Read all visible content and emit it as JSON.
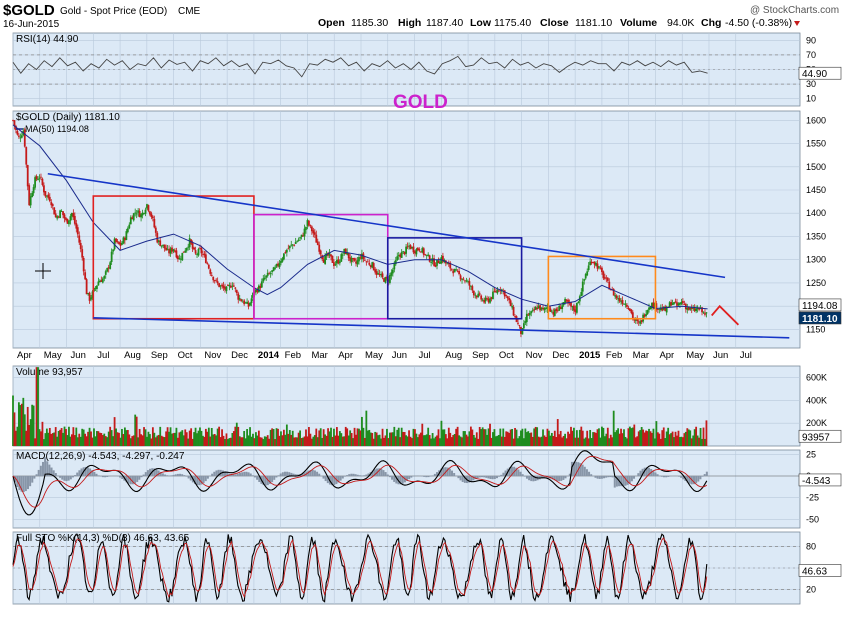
{
  "header": {
    "symbol": "$GOLD",
    "description": "Gold - Spot Price (EOD)",
    "exchange": "CME",
    "date": "16-Jun-2015",
    "open_label": "Open",
    "open": "1185.30",
    "high_label": "High",
    "high": "1187.40",
    "low_label": "Low",
    "low": "1175.40",
    "close_label": "Close",
    "close": "1181.10",
    "volume_label": "Volume",
    "volume": "94.0K",
    "chg_label": "Chg",
    "chg": "-4.50 (-0.38%)",
    "watermark": "@ StockCharts.com"
  },
  "annotation": "GOLD",
  "colors": {
    "panel_bg": "#dce9f6",
    "up": "#1e8c1e",
    "down": "#c41a1a",
    "ma": "#1a2a8c",
    "trend": "#1535c8",
    "rsi": "#444444",
    "price_box_bg": "#003366",
    "right_box_bg": "#ffffff",
    "annotation": "#cc22cc",
    "forecast": "#e02020"
  },
  "chart_data": [
    {
      "id": "rsi",
      "type": "line",
      "title": "RSI(14) 44.90",
      "ylim": [
        0,
        100
      ],
      "yticks": [
        10,
        30,
        50,
        70,
        90
      ],
      "guide_levels": [
        30,
        70
      ],
      "last_label": "44.90",
      "months": 27,
      "values": [
        60,
        45,
        58,
        50,
        62,
        54,
        66,
        55,
        60,
        48,
        58,
        52,
        64,
        56,
        62,
        50,
        58,
        55,
        66,
        52,
        63,
        57,
        60,
        48,
        62,
        58,
        66,
        55,
        62,
        54,
        58,
        44,
        60,
        58,
        63,
        55,
        52,
        40,
        58,
        56,
        64,
        60,
        66,
        55,
        60,
        48,
        58,
        54,
        62,
        52,
        58,
        50,
        60,
        48,
        44,
        58,
        62,
        68,
        54,
        56,
        66,
        58,
        60,
        52,
        64,
        56,
        60,
        52,
        58,
        55,
        46,
        54,
        60,
        56,
        62,
        58,
        58,
        48,
        60,
        56,
        62,
        55,
        60,
        54,
        62,
        56,
        60,
        46,
        48,
        44.9
      ]
    },
    {
      "id": "price",
      "type": "candlestick",
      "title": "$GOLD (Daily) 1181.10",
      "series": [
        {
          "name": "MA(50) 1194.08"
        }
      ],
      "ylim": [
        1110,
        1620
      ],
      "yticks": [
        1150,
        1200,
        1250,
        1300,
        1350,
        1400,
        1450,
        1500,
        1550,
        1600
      ],
      "last_label": "1181.10",
      "ma_label": "1194.08",
      "x_axis": {
        "months": 27,
        "labels": [
          "Apr",
          "May",
          "Jun",
          "Jul",
          "Aug",
          "Sep",
          "Oct",
          "Nov",
          "Dec",
          "2014",
          "Feb",
          "Mar",
          "Apr",
          "May",
          "Jun",
          "Jul",
          "Aug",
          "Sep",
          "Oct",
          "Nov",
          "Dec",
          "2015",
          "Feb",
          "Mar",
          "Apr",
          "May",
          "Jun",
          "Jul"
        ]
      },
      "close_path": [
        [
          0,
          1600
        ],
        [
          0.2,
          1560
        ],
        [
          0.4,
          1580
        ],
        [
          0.6,
          1420
        ],
        [
          0.8,
          1470
        ],
        [
          1.0,
          1480
        ],
        [
          1.2,
          1440
        ],
        [
          1.4,
          1430
        ],
        [
          1.6,
          1390
        ],
        [
          1.8,
          1405
        ],
        [
          2.0,
          1380
        ],
        [
          2.2,
          1400
        ],
        [
          2.4,
          1360
        ],
        [
          2.6,
          1300
        ],
        [
          2.75,
          1230
        ],
        [
          2.85,
          1215
        ],
        [
          3.0,
          1230
        ],
        [
          3.2,
          1255
        ],
        [
          3.4,
          1260
        ],
        [
          3.6,
          1290
        ],
        [
          3.8,
          1340
        ],
        [
          4.0,
          1330
        ],
        [
          4.2,
          1350
        ],
        [
          4.4,
          1390
        ],
        [
          4.6,
          1405
        ],
        [
          4.8,
          1395
        ],
        [
          5.0,
          1420
        ],
        [
          5.2,
          1390
        ],
        [
          5.4,
          1340
        ],
        [
          5.6,
          1330
        ],
        [
          5.8,
          1315
        ],
        [
          6.0,
          1325
        ],
        [
          6.2,
          1300
        ],
        [
          6.4,
          1320
        ],
        [
          6.6,
          1340
        ],
        [
          6.8,
          1310
        ],
        [
          7.0,
          1320
        ],
        [
          7.2,
          1300
        ],
        [
          7.4,
          1270
        ],
        [
          7.6,
          1250
        ],
        [
          7.8,
          1240
        ],
        [
          8.0,
          1235
        ],
        [
          8.2,
          1250
        ],
        [
          8.4,
          1220
        ],
        [
          8.6,
          1210
        ],
        [
          8.8,
          1200
        ],
        [
          9.0,
          1230
        ],
        [
          9.2,
          1240
        ],
        [
          9.4,
          1260
        ],
        [
          9.6,
          1270
        ],
        [
          9.8,
          1280
        ],
        [
          10.0,
          1300
        ],
        [
          10.2,
          1320
        ],
        [
          10.4,
          1330
        ],
        [
          10.6,
          1340
        ],
        [
          10.8,
          1350
        ],
        [
          11.0,
          1380
        ],
        [
          11.2,
          1360
        ],
        [
          11.4,
          1330
        ],
        [
          11.6,
          1300
        ],
        [
          11.8,
          1310
        ],
        [
          12.0,
          1290
        ],
        [
          12.2,
          1300
        ],
        [
          12.4,
          1320
        ],
        [
          12.6,
          1300
        ],
        [
          12.8,
          1290
        ],
        [
          13.0,
          1310
        ],
        [
          13.2,
          1295
        ],
        [
          13.4,
          1290
        ],
        [
          13.6,
          1270
        ],
        [
          13.8,
          1260
        ],
        [
          14.0,
          1255
        ],
        [
          14.2,
          1280
        ],
        [
          14.4,
          1310
        ],
        [
          14.6,
          1315
        ],
        [
          14.8,
          1330
        ],
        [
          15.0,
          1320
        ],
        [
          15.2,
          1325
        ],
        [
          15.4,
          1310
        ],
        [
          15.6,
          1300
        ],
        [
          15.8,
          1290
        ],
        [
          16.0,
          1305
        ],
        [
          16.2,
          1290
        ],
        [
          16.4,
          1280
        ],
        [
          16.6,
          1270
        ],
        [
          16.8,
          1260
        ],
        [
          17.0,
          1250
        ],
        [
          17.2,
          1230
        ],
        [
          17.4,
          1220
        ],
        [
          17.6,
          1210
        ],
        [
          17.8,
          1215
        ],
        [
          18.0,
          1230
        ],
        [
          18.2,
          1240
        ],
        [
          18.4,
          1225
        ],
        [
          18.6,
          1200
        ],
        [
          18.8,
          1170
        ],
        [
          19.0,
          1140
        ],
        [
          19.2,
          1180
        ],
        [
          19.4,
          1185
        ],
        [
          19.6,
          1200
        ],
        [
          19.8,
          1190
        ],
        [
          20.0,
          1200
        ],
        [
          20.2,
          1185
        ],
        [
          20.4,
          1195
        ],
        [
          20.6,
          1210
        ],
        [
          20.8,
          1200
        ],
        [
          21.0,
          1190
        ],
        [
          21.2,
          1230
        ],
        [
          21.4,
          1270
        ],
        [
          21.6,
          1300
        ],
        [
          21.8,
          1290
        ],
        [
          22.0,
          1270
        ],
        [
          22.2,
          1250
        ],
        [
          22.4,
          1230
        ],
        [
          22.6,
          1215
        ],
        [
          22.8,
          1210
        ],
        [
          23.0,
          1200
        ],
        [
          23.2,
          1170
        ],
        [
          23.4,
          1160
        ],
        [
          23.6,
          1185
        ],
        [
          23.8,
          1205
        ],
        [
          24.0,
          1200
        ],
        [
          24.2,
          1195
        ],
        [
          24.4,
          1190
        ],
        [
          24.6,
          1210
        ],
        [
          24.8,
          1200
        ],
        [
          25.0,
          1210
        ],
        [
          25.2,
          1195
        ],
        [
          25.4,
          1190
        ],
        [
          25.6,
          1195
        ],
        [
          25.8,
          1185
        ],
        [
          25.95,
          1181.1
        ]
      ],
      "ma50_path": [
        [
          0.0,
          1590
        ],
        [
          1.0,
          1545
        ],
        [
          2.0,
          1470
        ],
        [
          3.0,
          1380
        ],
        [
          4.0,
          1320
        ],
        [
          5.0,
          1340
        ],
        [
          6.0,
          1355
        ],
        [
          7.0,
          1330
        ],
        [
          8.0,
          1280
        ],
        [
          9.0,
          1240
        ],
        [
          9.5,
          1225
        ],
        [
          10.0,
          1240
        ],
        [
          11.0,
          1290
        ],
        [
          12.0,
          1320
        ],
        [
          13.0,
          1310
        ],
        [
          14.0,
          1290
        ],
        [
          15.0,
          1300
        ],
        [
          16.0,
          1300
        ],
        [
          17.0,
          1275
        ],
        [
          18.0,
          1240
        ],
        [
          19.0,
          1215
        ],
        [
          20.0,
          1200
        ],
        [
          21.0,
          1210
        ],
        [
          22.0,
          1245
        ],
        [
          23.0,
          1220
        ],
        [
          24.0,
          1195
        ],
        [
          25.0,
          1200
        ],
        [
          25.95,
          1194.08
        ]
      ],
      "trendlines": [
        {
          "from": [
            1.3,
            1485
          ],
          "to": [
            26.6,
            1262
          ]
        },
        {
          "from": [
            3.0,
            1175
          ],
          "to": [
            29.0,
            1132
          ]
        }
      ],
      "boxes": [
        {
          "color": "#e02020",
          "x": [
            3.0,
            9.0
          ],
          "y": [
            1173,
            1437
          ]
        },
        {
          "color": "#cc22cc",
          "x": [
            9.0,
            14.0
          ],
          "y": [
            1173,
            1397
          ]
        },
        {
          "color": "#1a1aa0",
          "x": [
            14.0,
            19.0
          ],
          "y": [
            1173,
            1347
          ]
        },
        {
          "color": "#ff8a1c",
          "x": [
            20.0,
            24.0
          ],
          "y": [
            1173,
            1307
          ]
        }
      ],
      "forecast": [
        [
          26.1,
          1180
        ],
        [
          26.4,
          1200
        ],
        [
          27.1,
          1160
        ]
      ]
    },
    {
      "id": "volume",
      "type": "bar",
      "title": "Volume 93,957",
      "ylim": [
        0,
        700
      ],
      "yticks": [
        200,
        400,
        600
      ],
      "ytick_labels": [
        "200K",
        "400K",
        "600K"
      ],
      "last_label": "93957"
    },
    {
      "id": "macd",
      "type": "line",
      "title": "MACD(12,26,9) -4.543, -4.297, -0.247",
      "ylim": [
        -60,
        30
      ],
      "yticks": [
        -50,
        -25,
        0,
        25
      ],
      "last_label": "-4.543"
    },
    {
      "id": "stoch",
      "type": "line",
      "title": "Full STO %K(14,3) %D(3) 46.63, 43.65",
      "ylim": [
        0,
        100
      ],
      "yticks": [
        20,
        50,
        80
      ],
      "guide_levels": [
        20,
        80
      ],
      "last_label": "46.63"
    }
  ]
}
